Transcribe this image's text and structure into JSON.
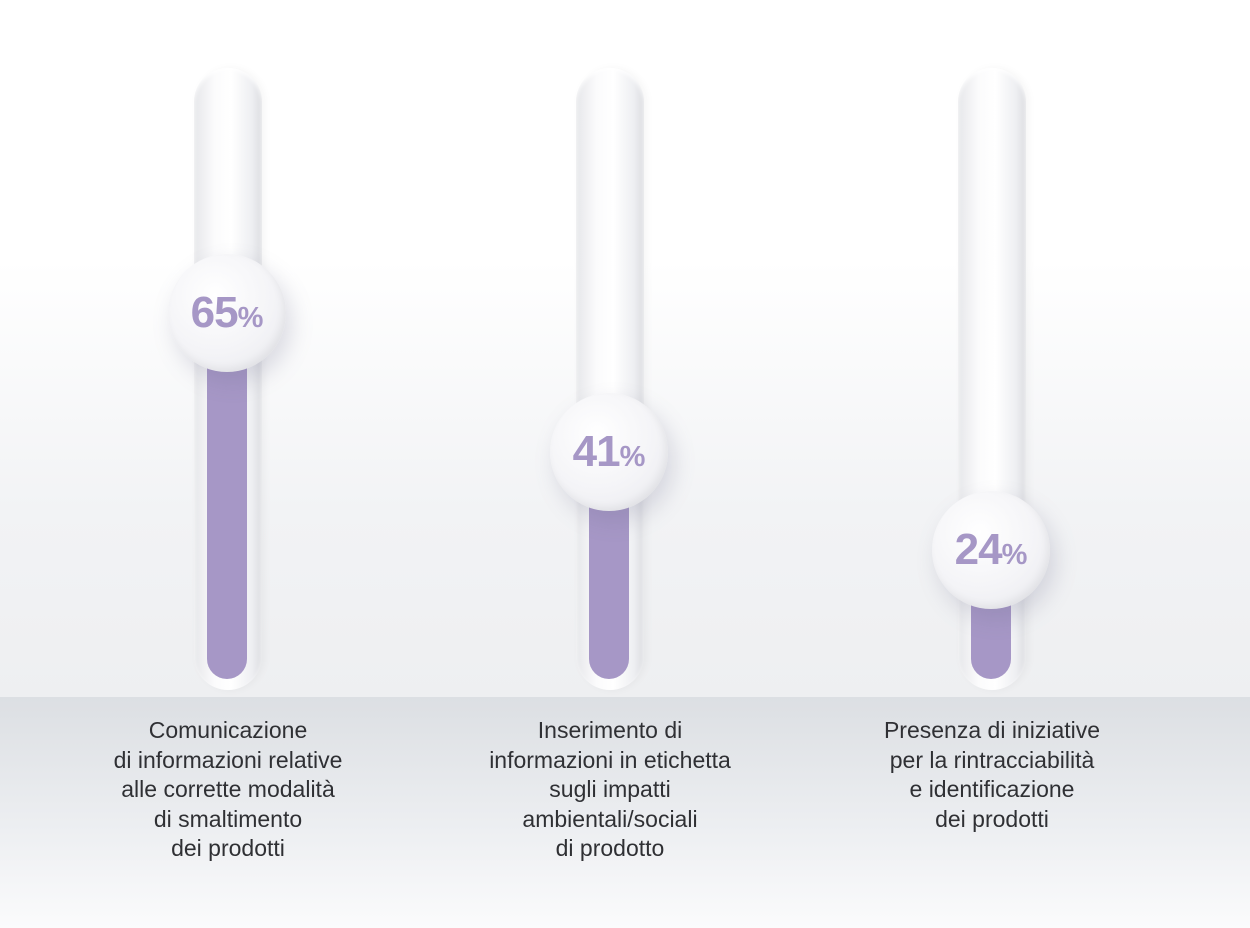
{
  "chart_data": {
    "type": "bar",
    "ylim": [
      0,
      100
    ],
    "categories": [
      "Comunicazione\ndi informazioni relative\nalle corrette modalità\ndi smaltimento\ndei prodotti",
      "Inserimento di\ninformazioni in etichetta\nsugli impatti\nambientali/sociali\ndi prodotto",
      "Presenza di iniziative\nper la rintracciabilità\ne identificazione\ndei prodotti"
    ],
    "values": [
      65,
      41,
      24
    ],
    "value_labels": [
      "65",
      "41",
      "24"
    ],
    "unit": "%",
    "colors": {
      "fill": "#a697c6",
      "track": "#f4f4f6",
      "label_value": "#a697c6",
      "text": "#2f3034"
    }
  }
}
